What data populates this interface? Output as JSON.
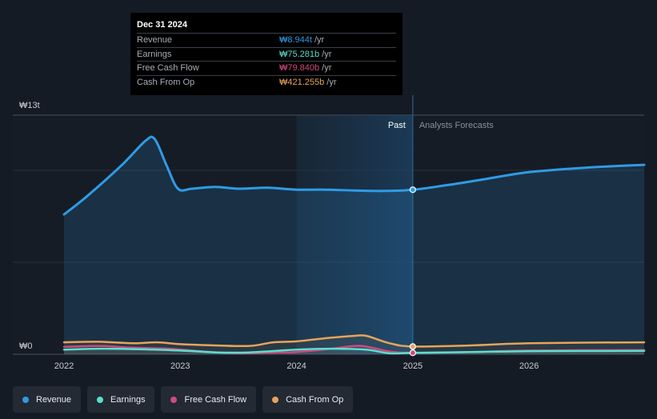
{
  "chart_data": {
    "type": "area",
    "title": "",
    "y_axis": {
      "top_label": "₩13t",
      "bottom_label": "₩0",
      "range_trillions": [
        0,
        13
      ]
    },
    "x_ticks": [
      {
        "label": "2022",
        "t": 2022.0
      },
      {
        "label": "2023",
        "t": 2023.0
      },
      {
        "label": "2024",
        "t": 2024.0
      },
      {
        "label": "2025",
        "t": 2025.0
      },
      {
        "label": "2026",
        "t": 2026.0
      }
    ],
    "x_range": [
      2021.78,
      2026.99
    ],
    "past_label": "Past",
    "forecast_label": "Analysts Forecasts",
    "divider_t": 2025.0,
    "past_shade_start_t": 2024.0,
    "series": [
      {
        "name": "Revenue",
        "color": "#2f9be6",
        "fill": true,
        "points": [
          [
            2022.0,
            7.6
          ],
          [
            2022.2,
            8.6
          ],
          [
            2022.5,
            10.3
          ],
          [
            2022.7,
            11.6
          ],
          [
            2022.78,
            11.7
          ],
          [
            2022.88,
            10.3
          ],
          [
            2022.98,
            9.0
          ],
          [
            2023.1,
            9.0
          ],
          [
            2023.3,
            9.1
          ],
          [
            2023.5,
            9.0
          ],
          [
            2023.75,
            9.05
          ],
          [
            2024.0,
            8.95
          ],
          [
            2024.25,
            8.95
          ],
          [
            2024.5,
            8.9
          ],
          [
            2024.75,
            8.88
          ],
          [
            2025.0,
            8.944
          ],
          [
            2025.3,
            9.2
          ],
          [
            2025.6,
            9.5
          ],
          [
            2026.0,
            9.9
          ],
          [
            2026.5,
            10.15
          ],
          [
            2026.99,
            10.3
          ]
        ]
      },
      {
        "name": "Earnings",
        "color": "#56e0cd",
        "fill": false,
        "points": [
          [
            2022.0,
            0.25
          ],
          [
            2022.3,
            0.3
          ],
          [
            2022.6,
            0.28
          ],
          [
            2023.0,
            0.2
          ],
          [
            2023.3,
            0.1
          ],
          [
            2023.6,
            0.1
          ],
          [
            2024.0,
            0.25
          ],
          [
            2024.3,
            0.3
          ],
          [
            2024.6,
            0.25
          ],
          [
            2024.8,
            0.05
          ],
          [
            2025.0,
            0.075
          ],
          [
            2025.5,
            0.12
          ],
          [
            2026.0,
            0.16
          ],
          [
            2026.99,
            0.18
          ]
        ]
      },
      {
        "name": "Free Cash Flow",
        "color": "#d0497f",
        "fill": false,
        "points": [
          [
            2022.0,
            0.4
          ],
          [
            2022.3,
            0.45
          ],
          [
            2022.6,
            0.35
          ],
          [
            2022.9,
            0.3
          ],
          [
            2023.2,
            0.15
          ],
          [
            2023.5,
            0.05
          ],
          [
            2023.8,
            0.1
          ],
          [
            2024.0,
            0.12
          ],
          [
            2024.3,
            0.3
          ],
          [
            2024.55,
            0.45
          ],
          [
            2024.8,
            0.15
          ],
          [
            2025.0,
            0.08
          ],
          [
            2025.5,
            0.12
          ],
          [
            2026.0,
            0.2
          ],
          [
            2026.99,
            0.22
          ]
        ]
      },
      {
        "name": "Cash From Op",
        "color": "#e7a458",
        "fill": false,
        "points": [
          [
            2022.0,
            0.65
          ],
          [
            2022.3,
            0.68
          ],
          [
            2022.6,
            0.6
          ],
          [
            2022.8,
            0.65
          ],
          [
            2023.0,
            0.55
          ],
          [
            2023.3,
            0.48
          ],
          [
            2023.6,
            0.45
          ],
          [
            2023.8,
            0.65
          ],
          [
            2024.0,
            0.7
          ],
          [
            2024.3,
            0.9
          ],
          [
            2024.5,
            1.0
          ],
          [
            2024.6,
            1.0
          ],
          [
            2024.8,
            0.6
          ],
          [
            2025.0,
            0.42
          ],
          [
            2025.5,
            0.48
          ],
          [
            2026.0,
            0.6
          ],
          [
            2026.99,
            0.65
          ]
        ]
      }
    ]
  },
  "tooltip": {
    "date": "Dec 31 2024",
    "rows": [
      {
        "label": "Revenue",
        "value": "₩8.944t",
        "unit": "/yr",
        "color": "#2f9be6"
      },
      {
        "label": "Earnings",
        "value": "₩75.281b",
        "unit": "/yr",
        "color": "#56e0cd"
      },
      {
        "label": "Free Cash Flow",
        "value": "₩79.840b",
        "unit": "/yr",
        "color": "#d0497f"
      },
      {
        "label": "Cash From Op",
        "value": "₩421.255b",
        "unit": "/yr",
        "color": "#e7a458"
      }
    ]
  },
  "legend": [
    {
      "label": "Revenue",
      "color": "#2f9be6"
    },
    {
      "label": "Earnings",
      "color": "#56e0cd"
    },
    {
      "label": "Free Cash Flow",
      "color": "#d0497f"
    },
    {
      "label": "Cash From Op",
      "color": "#e7a458"
    }
  ]
}
